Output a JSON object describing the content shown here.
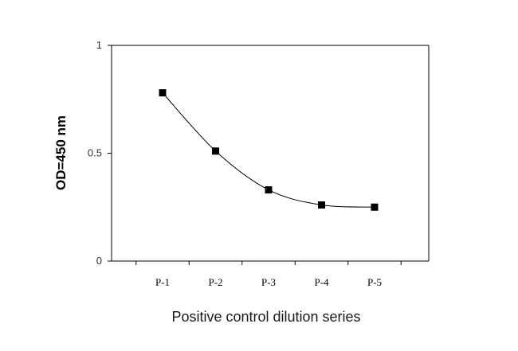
{
  "chart_data": {
    "type": "line",
    "title": "",
    "xlabel": "Positive control dilution series",
    "ylabel": "OD=450 nm",
    "categories": [
      "P-1",
      "P-2",
      "P-3",
      "P-4",
      "P-5"
    ],
    "series": [
      {
        "values": [
          0.78,
          0.51,
          0.33,
          0.26,
          0.25
        ]
      }
    ],
    "ylim": [
      0,
      1
    ],
    "yticks": [
      {
        "value": 0,
        "label": "0"
      },
      {
        "value": 0.5,
        "label": "0.5"
      },
      {
        "value": 1,
        "label": "1"
      }
    ],
    "marker": "square",
    "line": "smooth",
    "grid": false,
    "legend": "none",
    "colors": {
      "series": "#000000",
      "axis": "#000000"
    }
  }
}
